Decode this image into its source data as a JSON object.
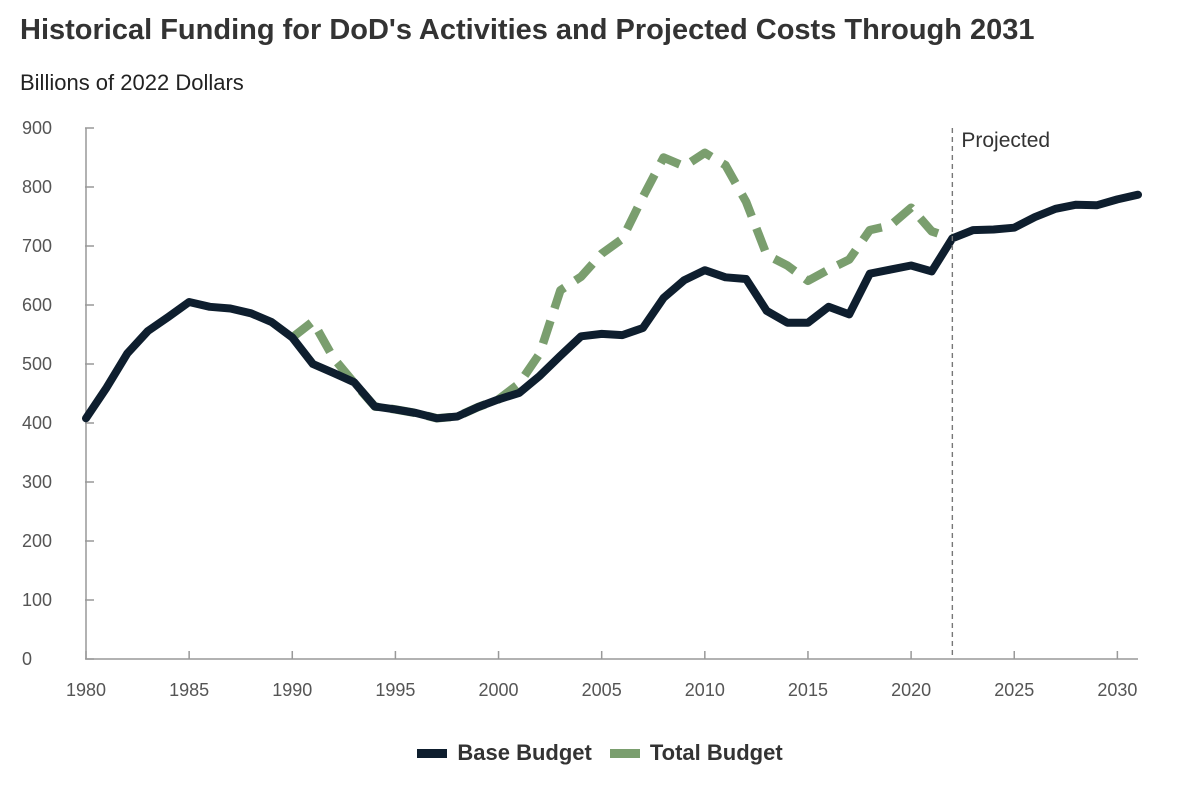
{
  "chart_data": {
    "type": "line",
    "title": "Historical Funding for DoD's Activities and Projected Costs Through 2031",
    "subtitle": "Billions of 2022 Dollars",
    "xlabel": "",
    "ylabel": "Billions of 2022 Dollars",
    "xlim": [
      1980,
      2031
    ],
    "ylim": [
      0,
      900
    ],
    "x_ticks": [
      1980,
      1985,
      1990,
      1995,
      2000,
      2005,
      2010,
      2015,
      2020,
      2025,
      2030
    ],
    "y_ticks": [
      0,
      100,
      200,
      300,
      400,
      500,
      600,
      700,
      800,
      900
    ],
    "projection_start": 2022,
    "projection_label": "Projected",
    "grid": false,
    "legend_position": "bottom-center",
    "series": [
      {
        "name": "Total Budget",
        "color": "#7a9e6e",
        "style": "dashed",
        "x": [
          1990,
          1991,
          1992,
          1993,
          1994,
          1995,
          1996,
          1997,
          1998,
          1999,
          2000,
          2001,
          2002,
          2003,
          2004,
          2005,
          2006,
          2007,
          2008,
          2009,
          2010,
          2011,
          2012,
          2013,
          2014,
          2015,
          2016,
          2017,
          2018,
          2019,
          2020,
          2021,
          2022
        ],
        "values": [
          545,
          572,
          510,
          468,
          428,
          423,
          417,
          408,
          411,
          427,
          440,
          467,
          518,
          625,
          648,
          687,
          712,
          783,
          850,
          835,
          858,
          837,
          775,
          685,
          667,
          641,
          660,
          677,
          727,
          735,
          765,
          725,
          713
        ]
      },
      {
        "name": "Base Budget",
        "color": "#0e1e2e",
        "style": "solid",
        "x": [
          1980,
          1981,
          1982,
          1983,
          1984,
          1985,
          1986,
          1987,
          1988,
          1989,
          1990,
          1991,
          1992,
          1993,
          1994,
          1995,
          1996,
          1997,
          1998,
          1999,
          2000,
          2001,
          2002,
          2003,
          2004,
          2005,
          2006,
          2007,
          2008,
          2009,
          2010,
          2011,
          2012,
          2013,
          2014,
          2015,
          2016,
          2017,
          2018,
          2019,
          2020,
          2021,
          2022,
          2023,
          2024,
          2025,
          2026,
          2027,
          2028,
          2029,
          2030,
          2031
        ],
        "values": [
          408,
          460,
          518,
          556,
          580,
          605,
          597,
          594,
          586,
          571,
          545,
          500,
          485,
          469,
          428,
          423,
          417,
          408,
          411,
          427,
          440,
          451,
          480,
          514,
          547,
          551,
          549,
          561,
          612,
          642,
          659,
          647,
          644,
          590,
          570,
          570,
          597,
          584,
          653,
          660,
          667,
          657,
          713,
          727,
          728,
          731,
          749,
          763,
          770,
          769,
          779,
          787
        ]
      }
    ]
  }
}
